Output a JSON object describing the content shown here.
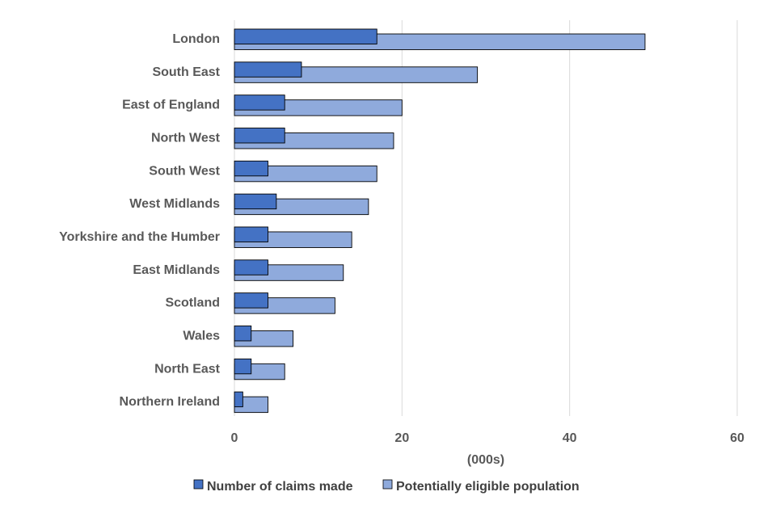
{
  "chart_data": {
    "type": "bar",
    "orientation": "horizontal",
    "title": "",
    "xlabel": "(000s)",
    "ylabel": "",
    "xlim": [
      0,
      60
    ],
    "xticks": [
      0,
      20,
      40,
      60
    ],
    "grid": true,
    "legend_position": "bottom",
    "categories": [
      "London",
      "South East",
      "East of England",
      "North West",
      "South West",
      "West Midlands",
      "Yorkshire and the Humber",
      "East Midlands",
      "Scotland",
      "Wales",
      "North East",
      "Northern Ireland"
    ],
    "series": [
      {
        "name": "Number of claims made",
        "color": "#4472C4",
        "values": [
          17,
          8,
          6,
          6,
          4,
          5,
          4,
          4,
          4,
          2,
          2,
          1
        ]
      },
      {
        "name": "Potentially eligible population",
        "color": "#8FAADC",
        "values": [
          49,
          29,
          20,
          19,
          17,
          16,
          14,
          13,
          12,
          7,
          6,
          4
        ]
      }
    ]
  }
}
